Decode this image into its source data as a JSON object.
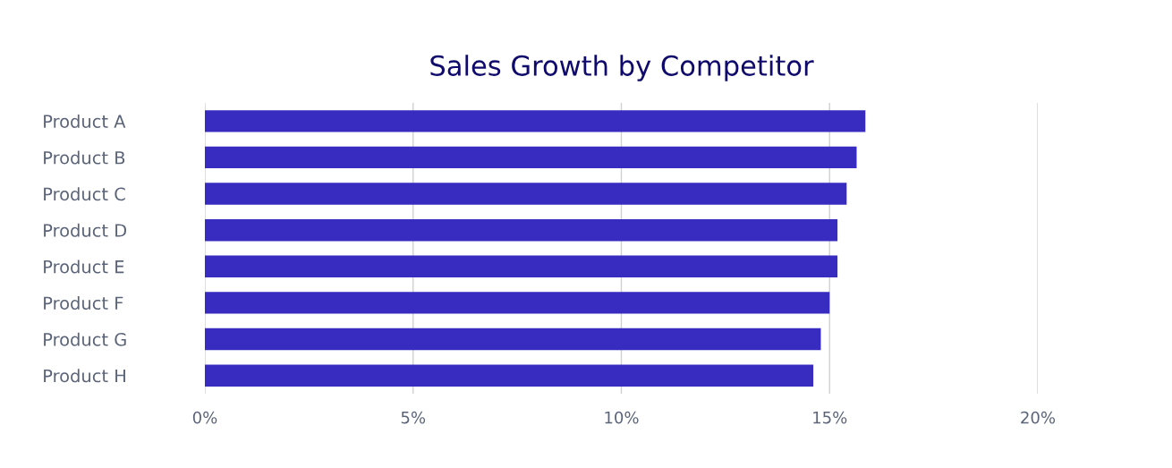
{
  "chart_data": {
    "type": "bar",
    "orientation": "horizontal",
    "title": "Sales Growth by Competitor",
    "categories": [
      "Product A",
      "Product B",
      "Product C",
      "Product D",
      "Product E",
      "Product F",
      "Product G",
      "Product H"
    ],
    "values": [
      15.86,
      15.65,
      15.41,
      15.19,
      15.19,
      15.0,
      14.79,
      14.61
    ],
    "color": "#372cbf",
    "xlim": [
      0,
      20
    ],
    "xticks": [
      {
        "value": 0,
        "label": "0%"
      },
      {
        "value": 5,
        "label": "5%"
      },
      {
        "value": 10,
        "label": "10%"
      },
      {
        "value": 15,
        "label": "15%"
      },
      {
        "value": 20,
        "label": "20%"
      }
    ],
    "grid": "x"
  }
}
